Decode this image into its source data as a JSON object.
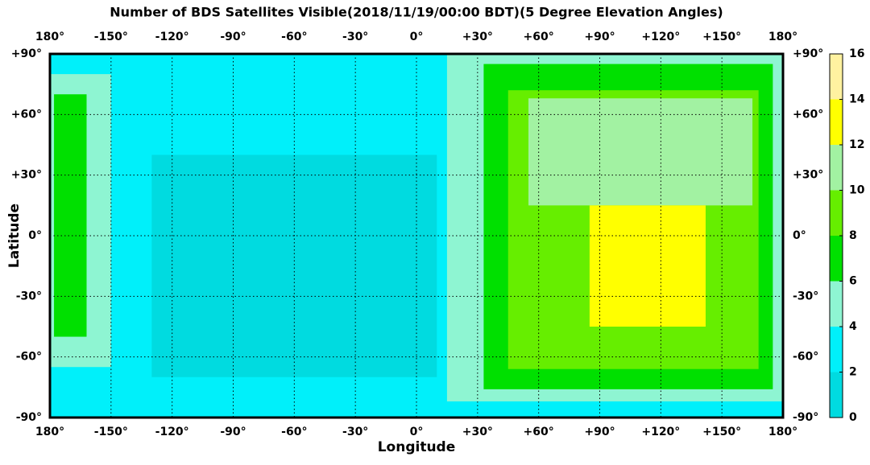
{
  "chart_data": {
    "type": "map",
    "title": "Number of BDS Satellites Visible(2018/11/19/00:00 BDT)(5 Degree Elevation Angles)",
    "xlabel": "Longitude",
    "ylabel": "Latitude",
    "xlim": [
      -180,
      180
    ],
    "ylim": [
      -90,
      90
    ],
    "xticks": [
      {
        "value": -180,
        "label": "180°"
      },
      {
        "value": -150,
        "label": "-150°"
      },
      {
        "value": -120,
        "label": "-120°"
      },
      {
        "value": -90,
        "label": "-90°"
      },
      {
        "value": -60,
        "label": "-60°"
      },
      {
        "value": -30,
        "label": "-30°"
      },
      {
        "value": 0,
        "label": "0°"
      },
      {
        "value": 30,
        "label": "+30°"
      },
      {
        "value": 60,
        "label": "+60°"
      },
      {
        "value": 90,
        "label": "+90°"
      },
      {
        "value": 120,
        "label": "+120°"
      },
      {
        "value": 150,
        "label": "+150°"
      },
      {
        "value": 180,
        "label": "180°"
      }
    ],
    "yticks": [
      {
        "value": -90,
        "label": "-90°"
      },
      {
        "value": -60,
        "label": "-60°"
      },
      {
        "value": -30,
        "label": "-30°"
      },
      {
        "value": 0,
        "label": "0°"
      },
      {
        "value": 30,
        "label": "+30°"
      },
      {
        "value": 60,
        "label": "+60°"
      },
      {
        "value": 90,
        "label": "+90°"
      }
    ],
    "grid": true,
    "clim": [
      0,
      16
    ],
    "cticks": [
      0,
      2,
      4,
      6,
      8,
      10,
      12,
      14,
      16
    ],
    "colors": [
      "#00dbe0",
      "#00f0fa",
      "#8ef5d2",
      "#00e000",
      "#66ee00",
      "#a2f2a2",
      "#ffff00",
      "#fff2a0"
    ],
    "regions": [
      {
        "value": 3,
        "lon": [
          -180,
          180
        ],
        "lat": [
          -90,
          90
        ]
      },
      {
        "value": 1,
        "lon": [
          -130,
          10
        ],
        "lat": [
          -70,
          40
        ]
      },
      {
        "value": 5,
        "lon": [
          -180,
          -150
        ],
        "lat": [
          -65,
          80
        ]
      },
      {
        "value": 5,
        "lon": [
          15,
          180
        ],
        "lat": [
          -82,
          90
        ]
      },
      {
        "value": 7,
        "lon": [
          -178,
          -162
        ],
        "lat": [
          -50,
          70
        ]
      },
      {
        "value": 7,
        "lon": [
          33,
          175
        ],
        "lat": [
          -76,
          85
        ]
      },
      {
        "value": 9,
        "lon": [
          45,
          168
        ],
        "lat": [
          -66,
          72
        ]
      },
      {
        "value": 11,
        "lon": [
          55,
          165
        ],
        "lat": [
          15,
          68
        ]
      },
      {
        "value": 13,
        "lon": [
          85,
          142
        ],
        "lat": [
          -45,
          15
        ]
      }
    ]
  }
}
